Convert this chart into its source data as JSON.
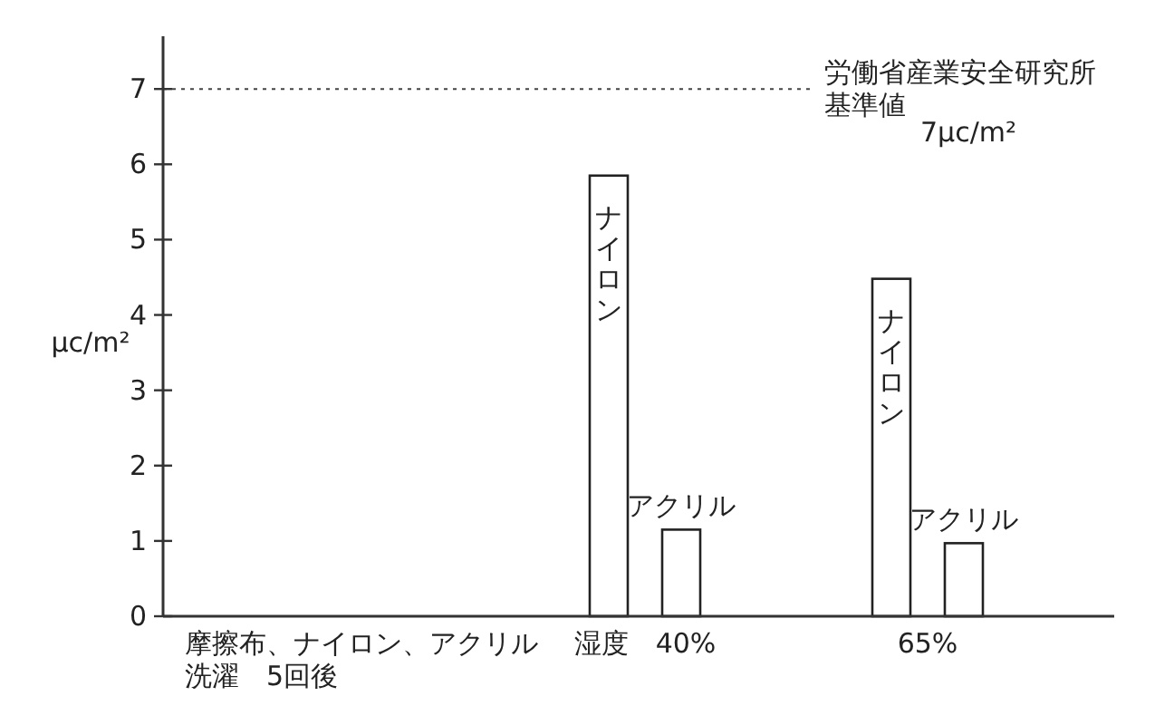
{
  "chart_data": {
    "type": "bar",
    "ylabel": "μc/m²",
    "categories": [
      "摩擦布、ナイロン、アクリル洗濯　5回後",
      "湿度　40%",
      "65%"
    ],
    "series": [
      {
        "name": "ナイロン",
        "color": "#ffffff",
        "values": [
          null,
          5.85,
          4.48
        ]
      },
      {
        "name": "アクリル",
        "color": "#ffffff",
        "values": [
          null,
          1.15,
          0.97
        ]
      }
    ],
    "ylim": [
      0,
      7.7
    ],
    "yticks": [
      0,
      1,
      2,
      3,
      4,
      5,
      6,
      7
    ],
    "grid": false,
    "legend": false,
    "ref_lines": [
      {
        "axis": "y",
        "value": 7,
        "label": "労働省産業安全研究所基準値",
        "line_style": "dotted"
      }
    ],
    "annotations": [
      "7μc/m²"
    ]
  }
}
